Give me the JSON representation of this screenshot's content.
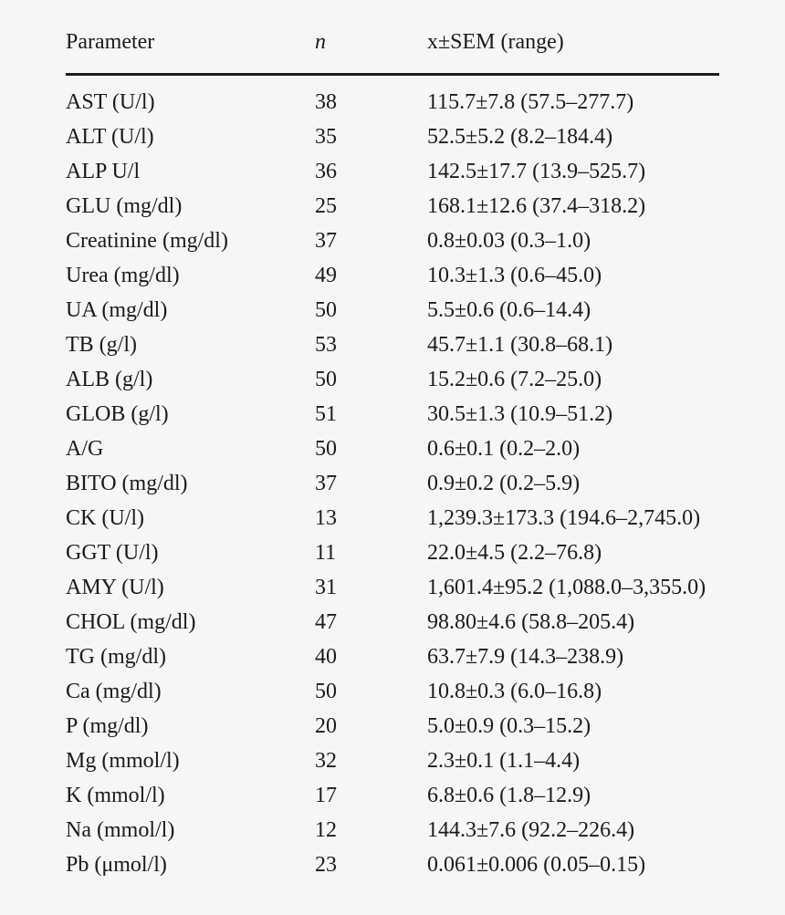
{
  "page": {
    "background_color": "#f6f6f6",
    "text_color": "#1b1b1b",
    "rule_color": "#1b1b1b"
  },
  "table": {
    "columns": [
      {
        "key": "parameter",
        "label": "Parameter"
      },
      {
        "key": "n",
        "label": "n"
      },
      {
        "key": "value",
        "label": "x±SEM (range)"
      }
    ],
    "rows": [
      [
        "AST (U/l)",
        "38",
        "115.7±7.8 (57.5–277.7)"
      ],
      [
        "ALT (U/l)",
        "35",
        "52.5±5.2 (8.2–184.4)"
      ],
      [
        "ALP U/l",
        "36",
        "142.5±17.7 (13.9–525.7)"
      ],
      [
        "GLU (mg/dl)",
        "25",
        "168.1±12.6 (37.4–318.2)"
      ],
      [
        "Creatinine (mg/dl)",
        "37",
        "0.8±0.03 (0.3–1.0)"
      ],
      [
        "Urea (mg/dl)",
        "49",
        "10.3±1.3 (0.6–45.0)"
      ],
      [
        "UA (mg/dl)",
        "50",
        "5.5±0.6 (0.6–14.4)"
      ],
      [
        "TB (g/l)",
        "53",
        "45.7±1.1 (30.8–68.1)"
      ],
      [
        "ALB (g/l)",
        "50",
        "15.2±0.6 (7.2–25.0)"
      ],
      [
        "GLOB (g/l)",
        "51",
        "30.5±1.3 (10.9–51.2)"
      ],
      [
        "A/G",
        "50",
        "0.6±0.1 (0.2–2.0)"
      ],
      [
        "BITO (mg/dl)",
        "37",
        "0.9±0.2 (0.2–5.9)"
      ],
      [
        "CK (U/l)",
        "13",
        "1,239.3±173.3 (194.6–2,745.0)"
      ],
      [
        "GGT (U/l)",
        "11",
        "22.0±4.5 (2.2–76.8)"
      ],
      [
        "AMY (U/l)",
        "31",
        "1,601.4±95.2 (1,088.0–3,355.0)"
      ],
      [
        "CHOL (mg/dl)",
        "47",
        "98.80±4.6 (58.8–205.4)"
      ],
      [
        "TG (mg/dl)",
        "40",
        "63.7±7.9 (14.3–238.9)"
      ],
      [
        "Ca (mg/dl)",
        "50",
        "10.8±0.3 (6.0–16.8)"
      ],
      [
        "P (mg/dl)",
        "20",
        "5.0±0.9 (0.3–15.2)"
      ],
      [
        "Mg (mmol/l)",
        "32",
        "2.3±0.1 (1.1–4.4)"
      ],
      [
        "K (mmol/l)",
        "17",
        "6.8±0.6 (1.8–12.9)"
      ],
      [
        "Na (mmol/l)",
        "12",
        "144.3±7.6 (92.2–226.4)"
      ],
      [
        "Pb (μmol/l)",
        "23",
        "0.061±0.006 (0.05–0.15)"
      ]
    ]
  }
}
